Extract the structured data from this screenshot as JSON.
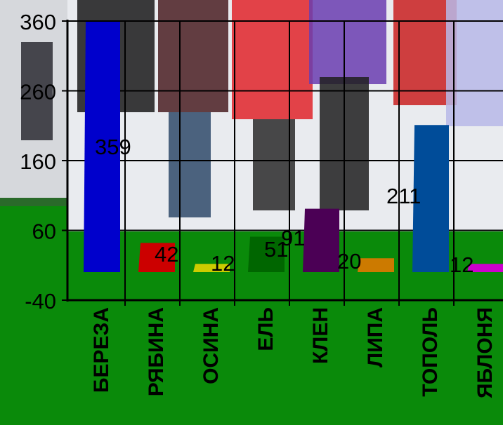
{
  "chart_data": {
    "type": "bar",
    "categories": [
      "БЕРЕЗА",
      "РЯБИНА",
      "ОСИНА",
      "ЕЛЬ",
      "КЛЕН",
      "ЛИПА",
      "ТОПОЛЬ",
      "ЯБЛОНЯ"
    ],
    "values": [
      359,
      42,
      12,
      51,
      91,
      20,
      211,
      12
    ],
    "data_labels": [
      "359",
      "42",
      "12",
      "51",
      "91",
      "20",
      "211",
      "12"
    ],
    "bar_colors": [
      "#0000cc",
      "#cc0000",
      "#cccc00",
      "#006600",
      "#4b0055",
      "#cc7a00",
      "#004c99",
      "#cc00cc"
    ],
    "yticks": [
      "360",
      "260",
      "160",
      "60",
      "-40"
    ],
    "ylim": [
      -40,
      360
    ],
    "grid": true,
    "title": "",
    "xlabel": "",
    "ylabel": ""
  },
  "colors": {
    "background": "#0a8a0a",
    "photo_sky": "#d6d8dc",
    "snow": "#e9ebef",
    "axis": "#000000"
  }
}
